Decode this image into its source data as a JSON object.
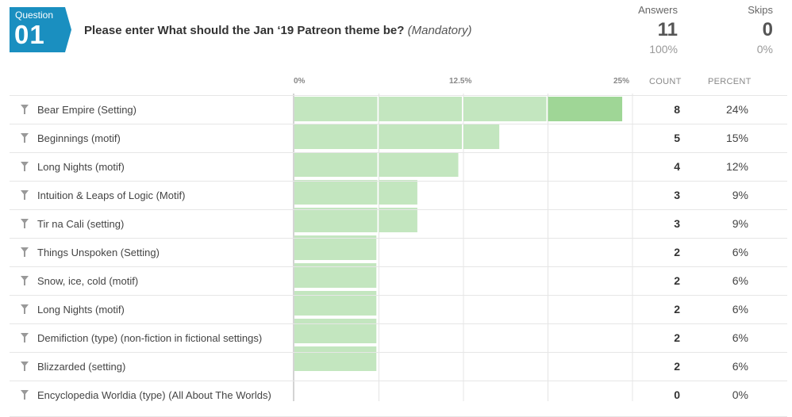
{
  "question": {
    "badge_label": "Question",
    "number": "01",
    "title": "Please enter What should the Jan ‘19 Patreon theme be?",
    "mandatory": "(Mandatory)"
  },
  "stats": {
    "answers_label": "Answers",
    "answers_value": "11",
    "answers_pct": "100%",
    "skips_label": "Skips",
    "skips_value": "0",
    "skips_pct": "0%"
  },
  "columns": {
    "count": "COUNT",
    "percent": "PERCENT"
  },
  "colors": {
    "badge": "#1a8fc0",
    "bar": "#c3e6bf",
    "bar_last": "#9fd696",
    "bar_divider": "#ffffff",
    "grid": "#e4e4e4"
  },
  "icons": {
    "filter": "funnel-icon"
  },
  "chart_data": {
    "type": "bar",
    "orientation": "horizontal",
    "xlim": [
      0,
      25
    ],
    "ticks": [
      "0%",
      "12.5%",
      "25%"
    ],
    "categories": [
      "Bear Empire (Setting)",
      "Beginnings (motif)",
      "Long Nights (motif)",
      "Intuition & Leaps of Logic (Motif)",
      "Tir na Cali (setting)",
      "Things Unspoken (Setting)",
      "Snow, ice, cold (motif)",
      "Long Nights (motif)",
      "Demifiction (type) (non-fiction in fictional settings)",
      "Blizzarded (setting)",
      "Encyclopedia Worldia (type) (All About The Worlds)"
    ],
    "counts": [
      8,
      5,
      4,
      3,
      3,
      2,
      2,
      2,
      2,
      2,
      0
    ],
    "percents": [
      "24%",
      "15%",
      "12%",
      "9%",
      "9%",
      "6%",
      "6%",
      "6%",
      "6%",
      "6%",
      "0%"
    ],
    "values": [
      24.24,
      15.15,
      12.12,
      9.09,
      9.09,
      6.06,
      6.06,
      6.06,
      6.06,
      6.06,
      0
    ]
  }
}
